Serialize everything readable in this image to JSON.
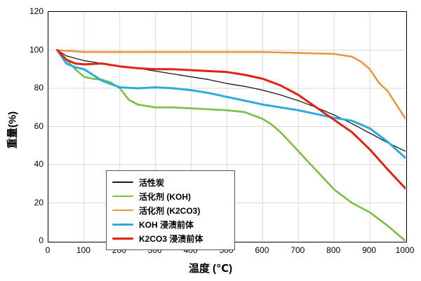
{
  "chart_data": {
    "type": "line",
    "title": "",
    "xlabel": "温度 (℃)",
    "ylabel": "重量(%)",
    "xlim": [
      0,
      1000
    ],
    "ylim": [
      0,
      120
    ],
    "x_ticks": [
      0,
      100,
      200,
      300,
      400,
      500,
      600,
      700,
      800,
      900,
      1000
    ],
    "y_ticks": [
      0,
      20,
      40,
      60,
      80,
      100,
      120
    ],
    "grid": true,
    "grid_color": "#d9d9d9",
    "legend_position": "lower-left",
    "series": [
      {
        "name": "活性炭",
        "color": "#1a1a1a",
        "width": 1.3,
        "x": [
          25,
          50,
          100,
          150,
          200,
          250,
          300,
          350,
          400,
          450,
          500,
          550,
          600,
          650,
          700,
          750,
          800,
          850,
          900,
          950,
          1000
        ],
        "y": [
          100,
          97,
          94.5,
          93,
          91.5,
          90.5,
          89,
          87.5,
          86,
          84.5,
          82.5,
          81,
          79,
          76.5,
          73.5,
          70,
          66,
          61.5,
          56.5,
          51.5,
          47
        ]
      },
      {
        "name": "活化剂 (KOH)",
        "color": "#7AC143",
        "width": 2.6,
        "x": [
          25,
          50,
          75,
          100,
          125,
          150,
          175,
          200,
          225,
          250,
          300,
          350,
          400,
          450,
          500,
          550,
          600,
          625,
          650,
          675,
          700,
          725,
          750,
          775,
          800,
          850,
          900,
          950,
          1000
        ],
        "y": [
          100,
          95,
          90,
          86,
          85,
          84.5,
          83,
          80,
          74,
          71.5,
          70,
          70,
          69.5,
          69,
          68.5,
          67.5,
          64,
          61,
          57,
          52,
          47,
          42,
          37,
          32,
          27,
          20,
          15,
          8,
          0
        ]
      },
      {
        "name": "活化剂 (K2CO3)",
        "color": "#F0953F",
        "width": 2.6,
        "x": [
          25,
          100,
          200,
          300,
          400,
          500,
          600,
          700,
          800,
          850,
          875,
          900,
          925,
          950,
          1000
        ],
        "y": [
          100,
          99,
          99,
          99,
          99,
          99,
          99,
          98.5,
          98,
          96.5,
          94,
          90,
          83,
          78.5,
          64
        ]
      },
      {
        "name": "KOH 浸渍前体",
        "color": "#29ABE2",
        "width": 3,
        "x": [
          25,
          50,
          75,
          100,
          125,
          150,
          200,
          250,
          300,
          350,
          400,
          450,
          500,
          550,
          600,
          650,
          700,
          750,
          800,
          850,
          900,
          950,
          1000
        ],
        "y": [
          100,
          93,
          91,
          90,
          87,
          84,
          80.5,
          80,
          80.5,
          80,
          79,
          77.5,
          75.5,
          73.5,
          71.5,
          70,
          68.5,
          66.5,
          64.5,
          63,
          59,
          52,
          43.5
        ]
      },
      {
        "name": "K2CO3 浸渍前体",
        "color": "#E32119",
        "width": 3,
        "x": [
          25,
          50,
          75,
          100,
          150,
          200,
          250,
          300,
          350,
          400,
          450,
          500,
          550,
          600,
          650,
          700,
          750,
          800,
          850,
          900,
          950,
          1000
        ],
        "y": [
          100,
          95,
          93,
          92.5,
          93,
          91.5,
          90.5,
          90,
          90,
          89.5,
          89,
          88.5,
          87,
          85,
          81.5,
          76.5,
          70,
          63.5,
          57,
          48,
          37.5,
          27.5
        ]
      }
    ]
  }
}
